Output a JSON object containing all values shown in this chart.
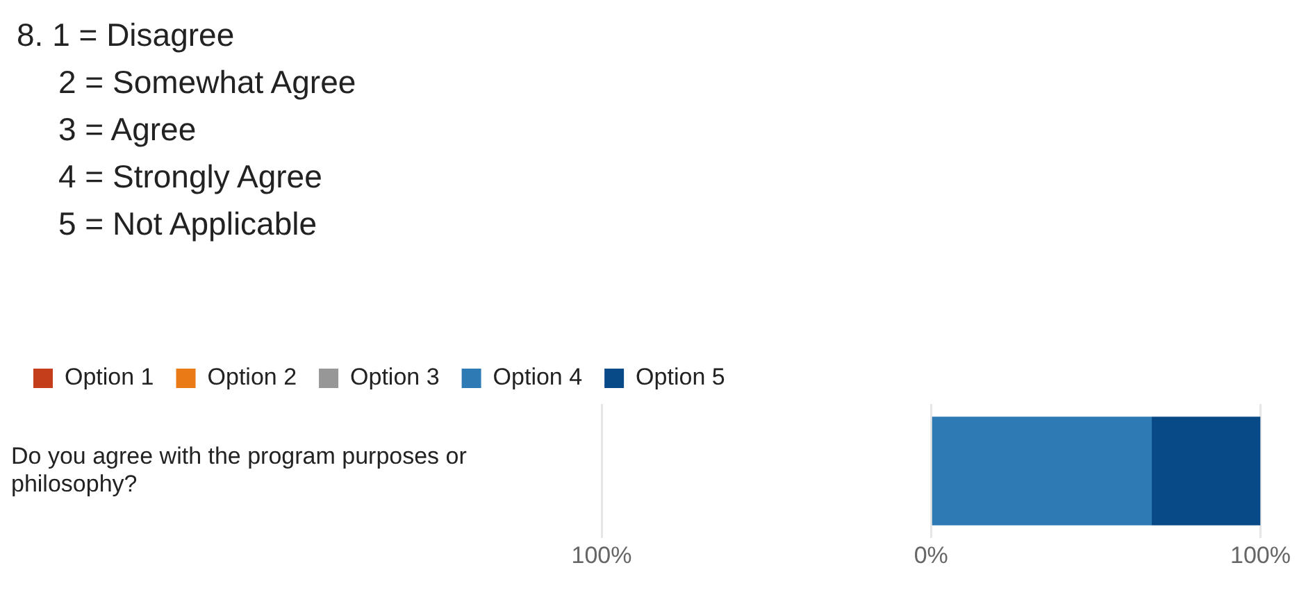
{
  "chart_data": {
    "type": "bar",
    "orientation": "horizontal",
    "stacked": true,
    "title": "8. 1 = Disagree\n2 = Somewhat Agree\n3 = Agree\n4 = Strongly Agree\n5 = Not Applicable",
    "categories": [
      "Do you agree with the program purposes or philosophy?"
    ],
    "series": [
      {
        "name": "Option 1",
        "color": "#c43e1c",
        "values": [
          0
        ]
      },
      {
        "name": "Option 2",
        "color": "#ea7a15",
        "values": [
          0
        ]
      },
      {
        "name": "Option 3",
        "color": "#979797",
        "values": [
          0
        ]
      },
      {
        "name": "Option 4",
        "color": "#2e7ab5",
        "values": [
          67
        ]
      },
      {
        "name": "Option 5",
        "color": "#084a87",
        "values": [
          33
        ]
      }
    ],
    "xlim": [
      -100,
      100
    ],
    "xticks": [
      {
        "value": -100,
        "label": "100%"
      },
      {
        "value": 0,
        "label": "0%"
      },
      {
        "value": 100,
        "label": "100%"
      }
    ],
    "grid": "x",
    "legend": "top left"
  }
}
